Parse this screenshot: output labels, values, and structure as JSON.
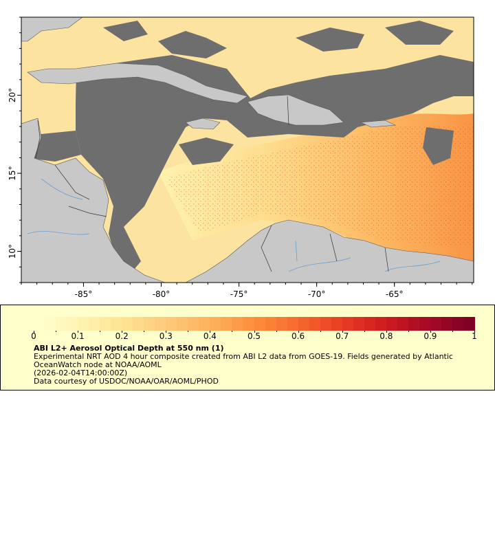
{
  "map": {
    "lat_ticks": [
      {
        "value": 20,
        "label": "20°"
      },
      {
        "value": 15,
        "label": "15°"
      },
      {
        "value": 10,
        "label": "10°"
      }
    ],
    "lon_ticks": [
      {
        "value": -85,
        "label": "-85°"
      },
      {
        "value": -80,
        "label": "-80°"
      },
      {
        "value": -75,
        "label": "-75°"
      },
      {
        "value": -70,
        "label": "-70°"
      },
      {
        "value": -65,
        "label": "-65°"
      }
    ],
    "extent": {
      "lon_min": -89,
      "lon_max": -59.9,
      "lat_min": 8.0,
      "lat_max": 25.0
    },
    "colors": {
      "cloud_mask": "#6e6e6e",
      "land": "#c8c8c8",
      "rivers": "#6a9fd0",
      "borders": "#555555",
      "frame": "#000000"
    }
  },
  "colorbar": {
    "labels": [
      "0",
      "0.1",
      "0.2",
      "0.3",
      "0.4",
      "0.5",
      "0.6",
      "0.7",
      "0.8",
      "0.9",
      "1"
    ],
    "colors": [
      "#ffffcc",
      "#fff2b0",
      "#fee391",
      "#fec97a",
      "#fdb15b",
      "#fd8f3c",
      "#f76a2f",
      "#ea3e24",
      "#d01c1f",
      "#a80a26",
      "#800026"
    ]
  },
  "legend": {
    "title": "ABI L2+ Aerosol Optical Depth at 550 nm (1)",
    "line1": "Experimental NRT AOD 4 hour composite created from ABI L2 data from GOES-19. Fields generated by Atlantic",
    "line2": "OceanWatch node at NOAA/AOML",
    "line3": "(2026-02-04T14:00:00Z)",
    "line4": "Data courtesy of USDOC/NOAA/OAR/AOML/PHOD"
  }
}
